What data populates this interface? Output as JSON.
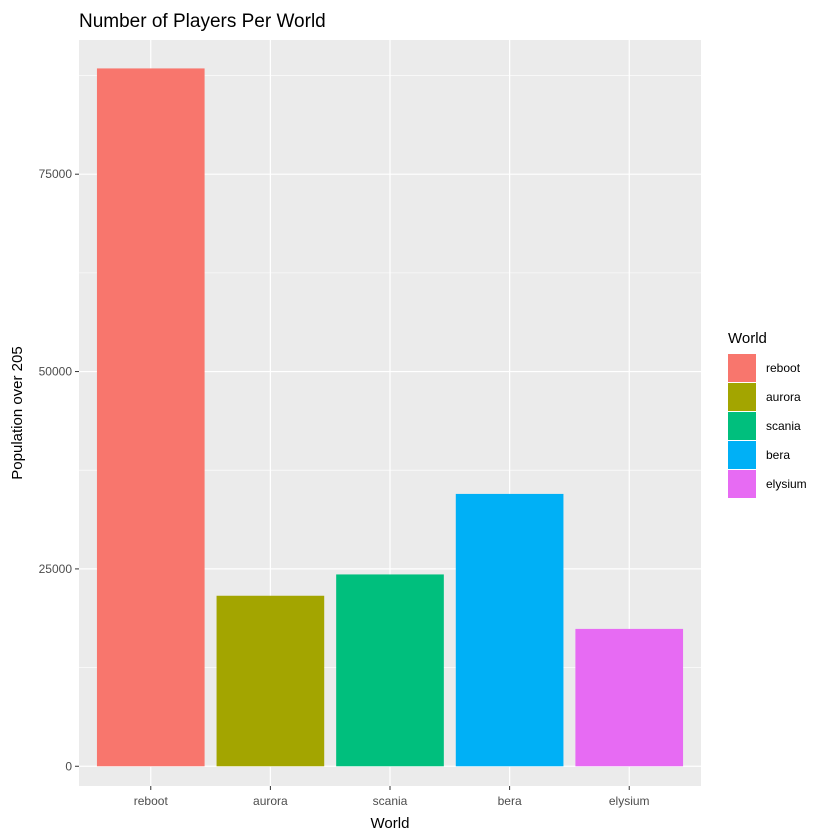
{
  "chart_data": {
    "type": "bar",
    "title": "Number of Players Per World",
    "xlabel": "World",
    "ylabel": "Population over 205",
    "categories": [
      "reboot",
      "aurora",
      "scania",
      "bera",
      "elysium"
    ],
    "values": [
      88400,
      21600,
      24300,
      34500,
      17400
    ],
    "colors": [
      "#F8766D",
      "#A3A500",
      "#00BF7D",
      "#00B0F6",
      "#E76BF3"
    ],
    "ylim": [
      -2500,
      92000
    ],
    "yticks": [
      0,
      25000,
      50000,
      75000
    ],
    "ytick_labels": [
      "0",
      "25000",
      "50000",
      "75000"
    ],
    "grid": true,
    "legend": {
      "title": "World",
      "position": "right",
      "entries": [
        "reboot",
        "aurora",
        "scania",
        "bera",
        "elysium"
      ]
    },
    "panel_color": "#EBEBEB",
    "grid_color": "#FFFFFF"
  }
}
